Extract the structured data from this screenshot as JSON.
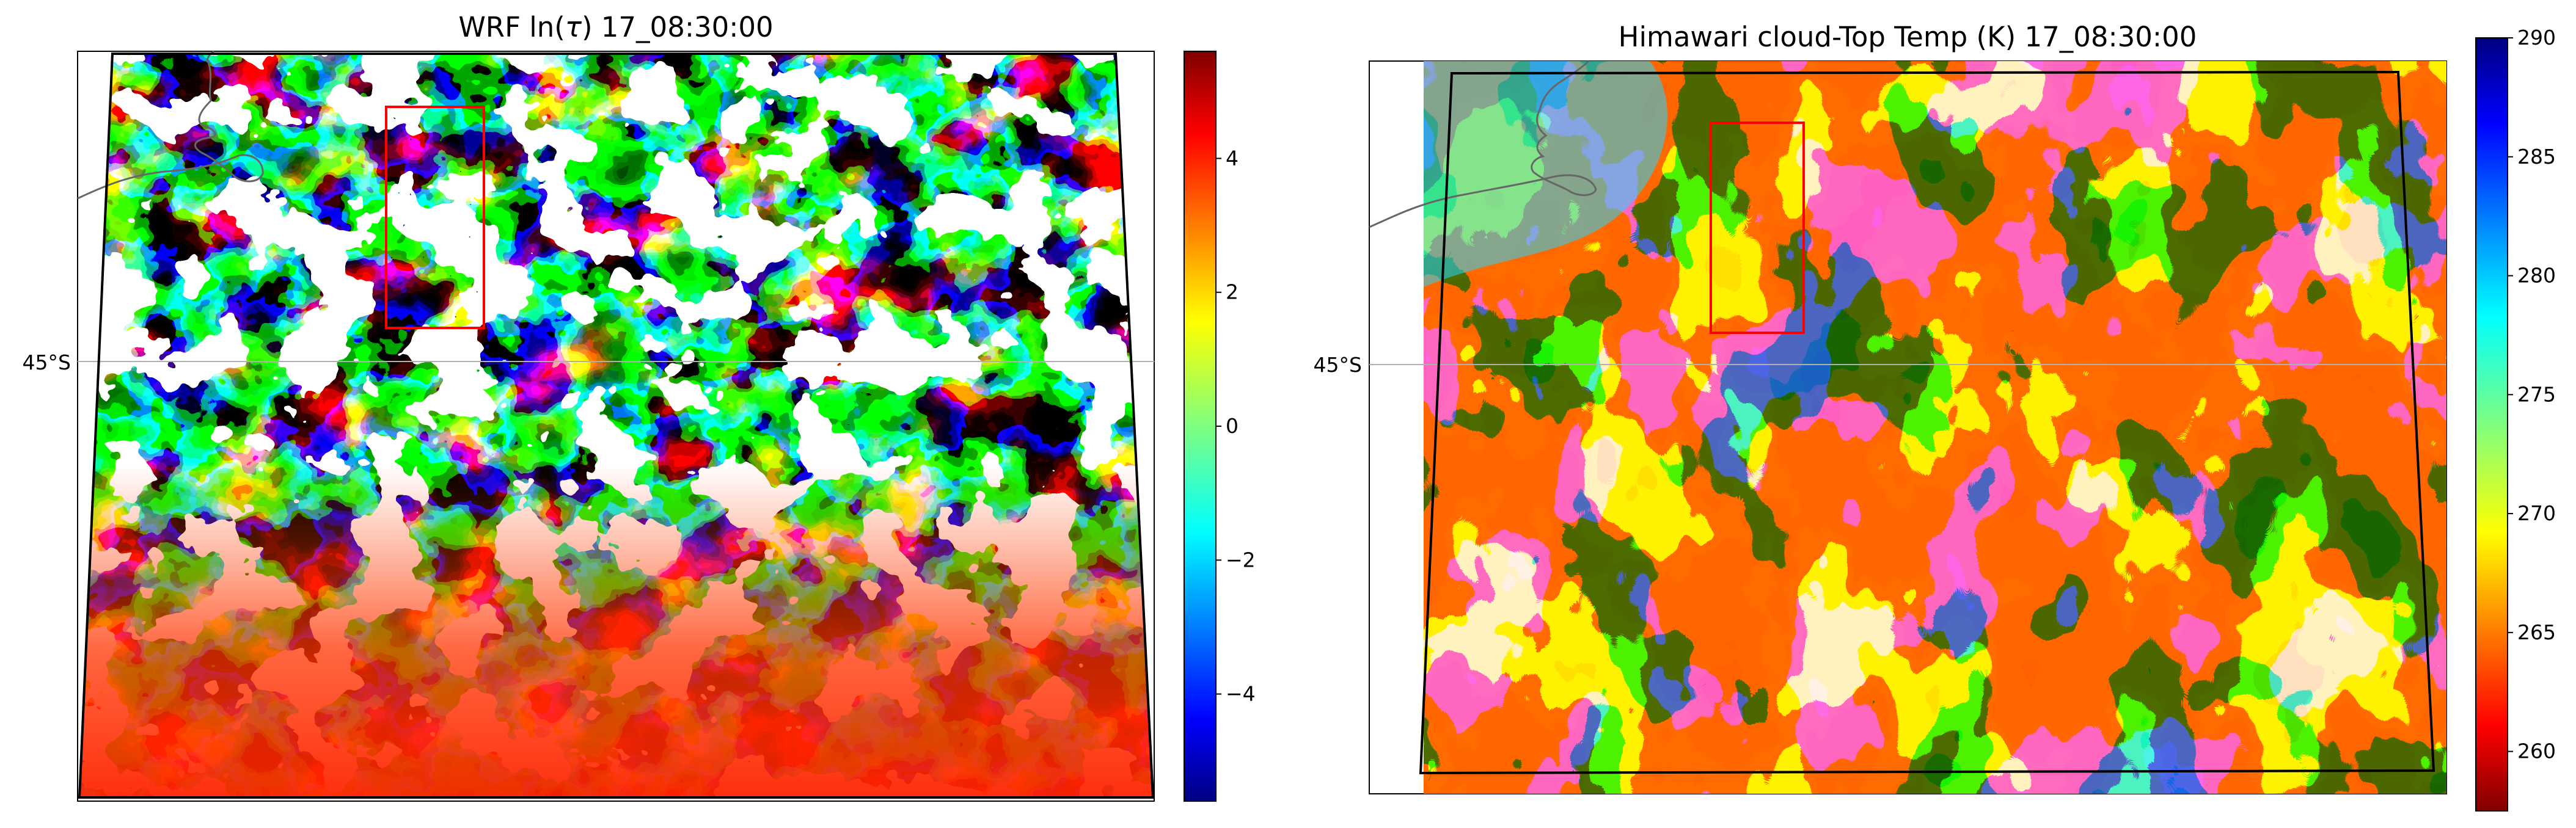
{
  "chart_data": [
    {
      "type": "heatmap",
      "title": "WRF ln(τ) 17_08:30:00",
      "title_plain": "WRF ln(",
      "title_tau": "τ",
      "title_suffix": ") 17_08:30:00",
      "latitude_label": "45°S",
      "colormap": "jet",
      "colorbar": {
        "range": [
          -5.6,
          5.6
        ],
        "ticks": [
          -4,
          -2,
          0,
          2,
          4
        ],
        "tick_labels": [
          "−4",
          "−2",
          "0",
          "2",
          "4"
        ]
      },
      "missing_value_color": "#ffffff",
      "highlight_box_color": "#ff0000",
      "domain_outline_color": "#000000",
      "coastline_color": "#666666",
      "gridline_color": "#b0b0b0"
    },
    {
      "type": "heatmap",
      "title": "Himawari cloud-Top Temp (K) 17_08:30:00",
      "latitude_label": "45°S",
      "colormap": "jet_r",
      "colorbar": {
        "range": [
          257.5,
          290
        ],
        "ticks": [
          260,
          265,
          270,
          275,
          280,
          285,
          290
        ],
        "tick_labels": [
          "260",
          "265",
          "270",
          "275",
          "280",
          "285",
          "290"
        ]
      },
      "highlight_box_color": "#ff0000",
      "domain_outline_color": "#000000",
      "coastline_color": "#666666",
      "gridline_color": "#b0b0b0"
    }
  ]
}
